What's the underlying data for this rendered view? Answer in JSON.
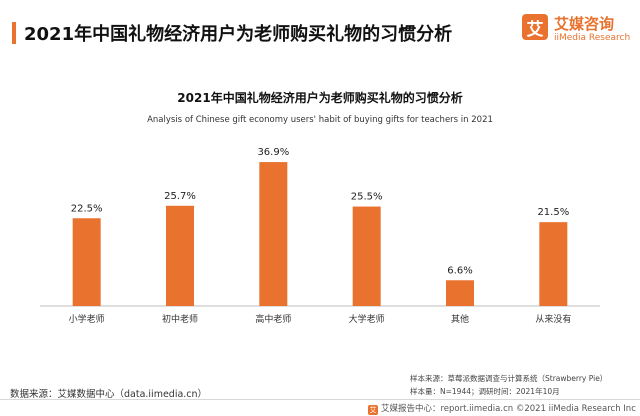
{
  "header": {
    "title": "2021年中国礼物经济用户为老师购买礼物的习惯分析"
  },
  "brand": {
    "logo_char": "艾",
    "name": "艾媒咨询",
    "sub": "iiMedia Research"
  },
  "chart_data": {
    "type": "bar",
    "title": "2021年中国礼物经济用户为老师购买礼物的习惯分析",
    "subtitle": "Analysis of Chinese gift economy users' habit of buying gifts for teachers in 2021",
    "categories": [
      "小学老师",
      "初中老师",
      "高中老师",
      "大学老师",
      "其他",
      "从来没有"
    ],
    "values": [
      22.5,
      25.7,
      36.9,
      25.5,
      6.6,
      21.5
    ],
    "value_labels": [
      "22.5%",
      "25.7%",
      "36.9%",
      "25.5%",
      "6.6%",
      "21.5%"
    ],
    "unit": "%",
    "ylim": [
      0,
      40
    ],
    "grid": false,
    "bar_color": "#e8722e"
  },
  "footer": {
    "source": "数据来源：艾媒数据中心（data.iimedia.cn）",
    "sample_source": "样本来源：草莓派数据调查与计算系统（Strawberry Pie）",
    "sample_size": "样本量：N=1944；调研时间：2021年10月",
    "copyright": "艾媒报告中心：report.iimedia.cn   ©2021  iiMedia Research  Inc"
  }
}
